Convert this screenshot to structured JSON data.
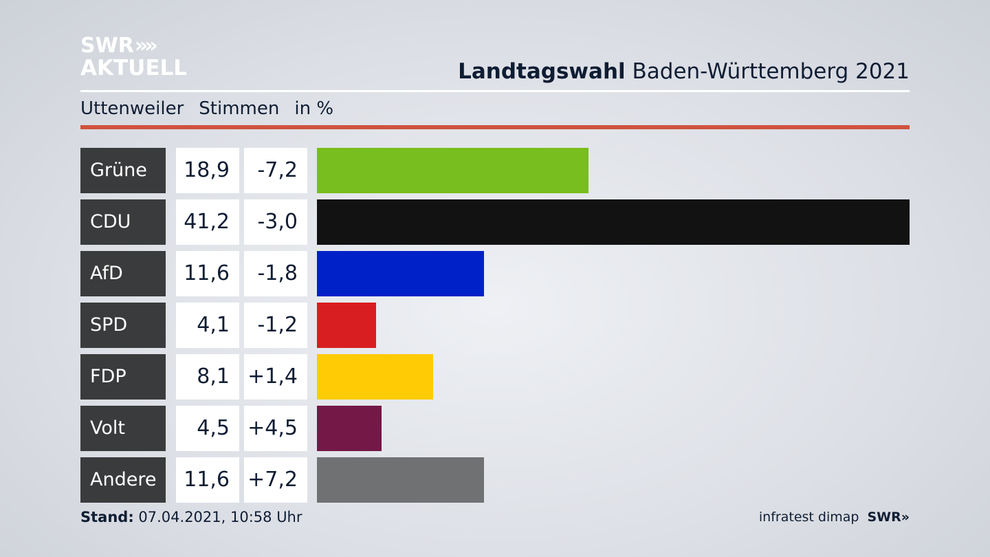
{
  "logo": {
    "line1": "SWR",
    "chevrons": "»",
    "line2": "AKTUELL"
  },
  "header": {
    "title_bold": "Landtagswahl",
    "title_rest": "Baden-Württemberg 2021"
  },
  "subheader": {
    "place": "Uttenweiler",
    "metric": "Stimmen",
    "unit": "in %"
  },
  "chart_data": {
    "type": "bar",
    "orientation": "horizontal",
    "categories": [
      "Grüne",
      "CDU",
      "AfD",
      "SPD",
      "FDP",
      "Volt",
      "Andere"
    ],
    "values": [
      18.9,
      41.2,
      11.6,
      4.1,
      8.1,
      4.5,
      11.6
    ],
    "value_labels": [
      "18,9",
      "41,2",
      "11,6",
      "4,1",
      "8,1",
      "4,5",
      "11,6"
    ],
    "changes": [
      -7.2,
      -3.0,
      -1.8,
      -1.2,
      1.4,
      4.5,
      7.2
    ],
    "change_labels": [
      "-7,2",
      "-3,0",
      "-1,8",
      "-1,2",
      "+1,4",
      "+4,5",
      "+7,2"
    ],
    "colors": [
      "#78be1e",
      "#121212",
      "#0021c8",
      "#d81e21",
      "#ffcb05",
      "#731847",
      "#707173"
    ],
    "xlim": [
      0,
      41.2
    ]
  },
  "footer": {
    "stand_label": "Stand:",
    "stand_value": "07.04.2021, 10:58 Uhr"
  },
  "credit": {
    "pollster": "infratest dimap",
    "brand": "SWR»"
  }
}
